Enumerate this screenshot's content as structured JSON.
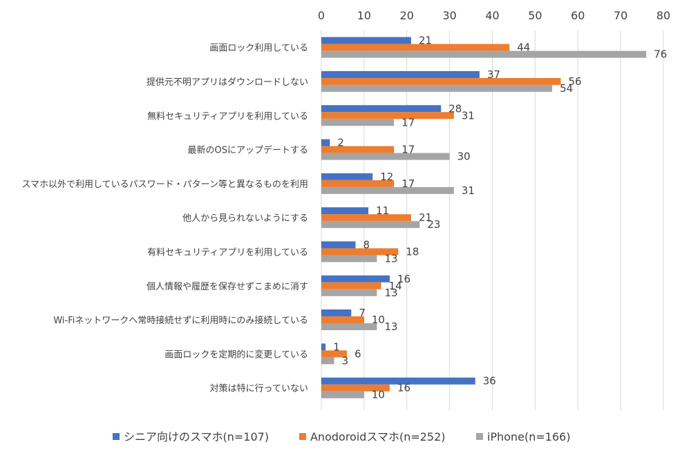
{
  "chart_data": {
    "type": "bar",
    "orientation": "horizontal",
    "xlim": [
      0,
      80
    ],
    "ticks": [
      "0",
      "10",
      "20",
      "30",
      "40",
      "50",
      "60",
      "70",
      "80"
    ],
    "tick_values": [
      0,
      10,
      20,
      30,
      40,
      50,
      60,
      70,
      80
    ],
    "grid": true,
    "legend_position": "bottom",
    "categories": [
      "画面ロック利用している",
      "提供元不明アプリはダウンロードしない",
      "無料セキュリティアプリを利用している",
      "最新のOSにアップデートする",
      "スマホ以外で利用しているパスワード・パターン等と異なるものを利用",
      "他人から見られないようにする",
      "有料セキュリティアプリを利用している",
      "個人情報や履歴を保存せずこまめに消す",
      "Wi-Fiネットワークへ常時接続せずに利用時にのみ接続している",
      "画面ロックを定期的に変更している",
      "対策は特に行っていない"
    ],
    "series": [
      {
        "name": "シニア向けのスマホ(n=107)",
        "color": "#4472c4",
        "values": [
          21,
          37,
          28,
          2,
          12,
          11,
          8,
          16,
          7,
          1,
          36
        ]
      },
      {
        "name": "Anodoroidスマホ(n=252)",
        "color": "#ed7d31",
        "values": [
          44,
          56,
          31,
          17,
          17,
          21,
          18,
          14,
          10,
          6,
          16
        ]
      },
      {
        "name": "iPhone(n=166)",
        "color": "#a5a5a5",
        "values": [
          76,
          54,
          17,
          30,
          31,
          23,
          13,
          13,
          13,
          3,
          10
        ]
      }
    ]
  }
}
